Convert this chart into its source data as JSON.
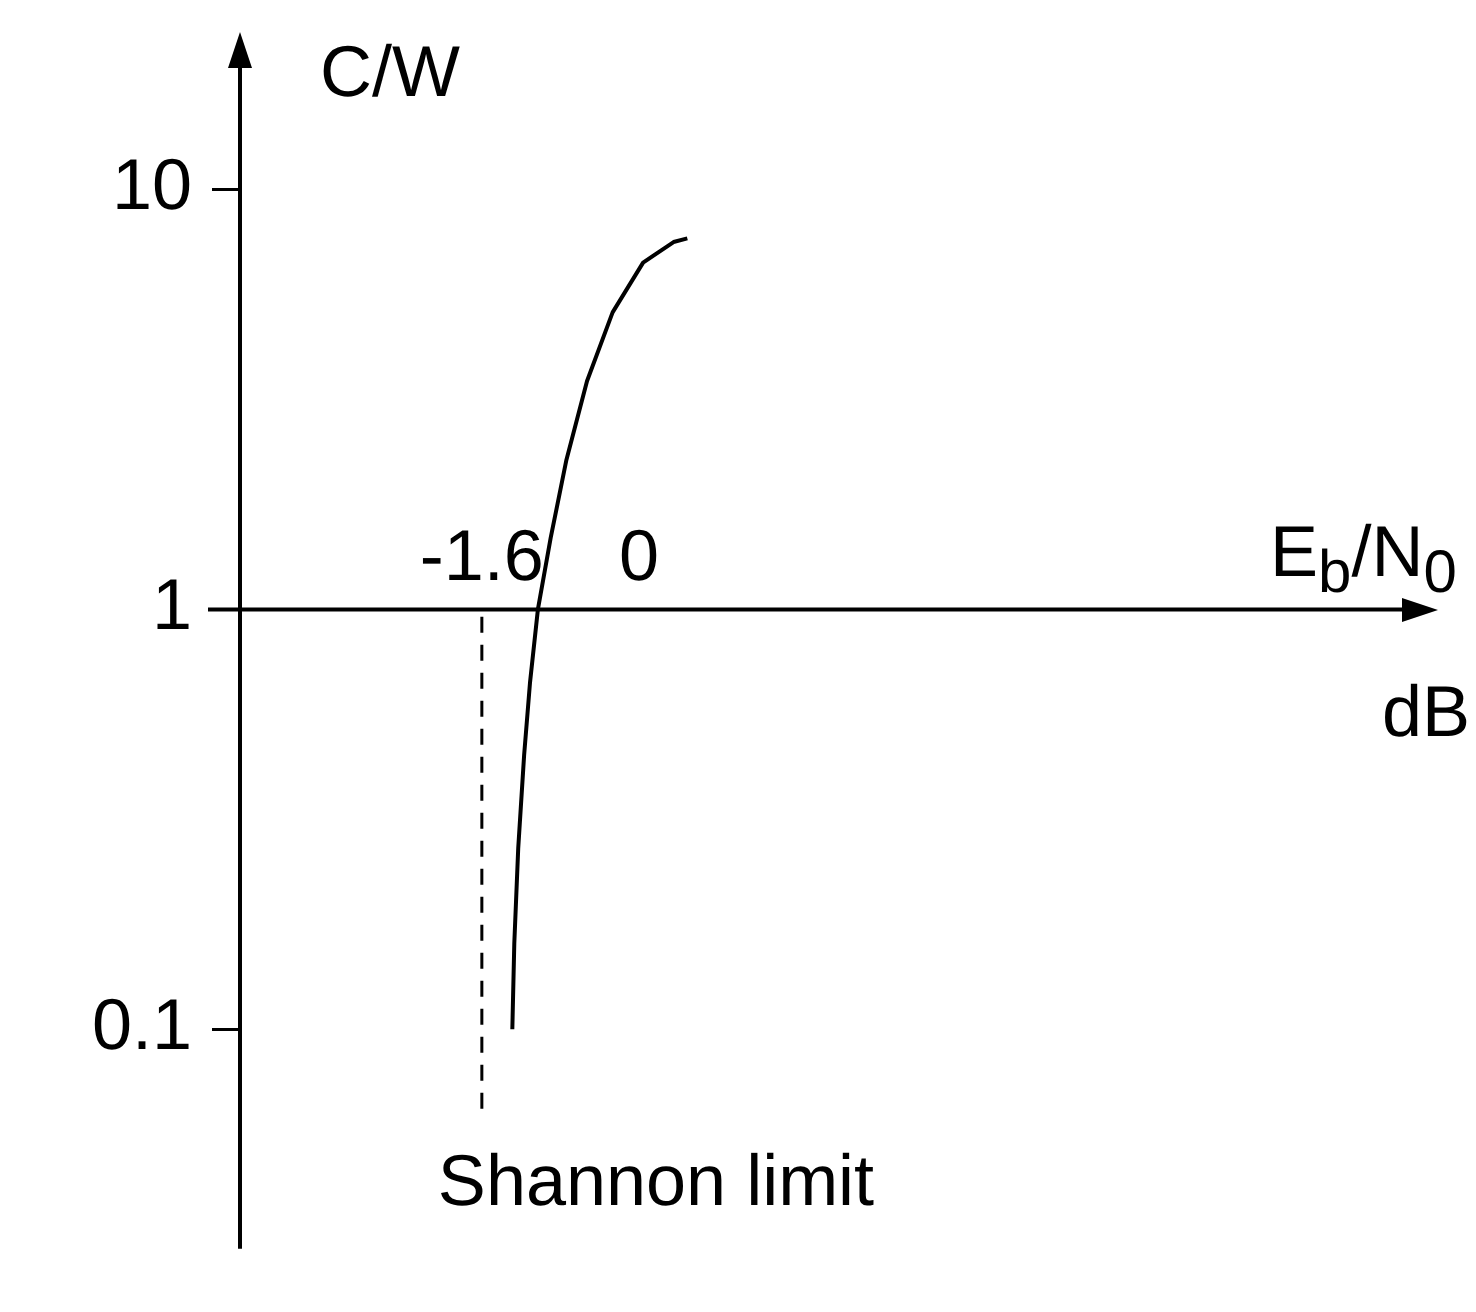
{
  "chart_data": {
    "type": "line",
    "xlabel": "E$_{b}$/N$_{0}$ dB",
    "ylabel": "C/W",
    "x": [
      -1.29,
      -1.27,
      -1.23,
      -1.17,
      -1.11,
      -1.03,
      -0.9,
      -0.74,
      -0.53,
      -0.27,
      0.04,
      0.35,
      0.49
    ],
    "series": [
      {
        "color": "#000000",
        "values": [
          0.1,
          0.16,
          0.27,
          0.45,
          0.67,
          1.0,
          1.48,
          2.27,
          3.5,
          5.1,
          6.7,
          7.5,
          7.65
        ]
      }
    ],
    "xlim": [
      -4.06,
      7.8
    ],
    "xticks": [
      -1.6,
      0
    ],
    "ylim": [
      0.03,
      20
    ],
    "yticks": [
      0.1,
      1,
      10
    ],
    "log": "y",
    "grid": false,
    "legend": false,
    "marker": "none",
    "line_style": "solid",
    "ref_lines": [
      {
        "axis": "x",
        "value": -1.6,
        "label": "Shannon limit",
        "line_style": "dashed",
        "color": "#000000"
      }
    ]
  }
}
